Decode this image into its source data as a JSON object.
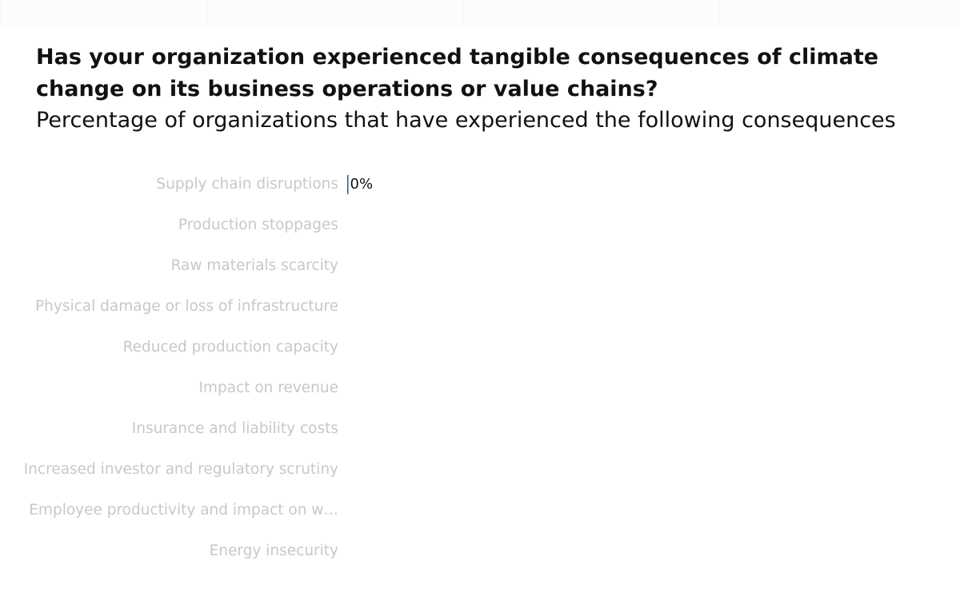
{
  "chart_data": {
    "type": "bar",
    "orientation": "horizontal",
    "title": "Has your organization experienced tangible consequences of climate change on its business operations or value chains?",
    "subtitle": "Percentage of organizations that have experienced the following consequences",
    "categories": [
      "Supply chain disruptions",
      "Production stoppages",
      "Raw materials scarcity",
      "Physical damage or loss of infrastructure",
      "Reduced production capacity",
      "Impact on revenue",
      "Insurance and liability costs",
      "Increased investor and regulatory scrutiny",
      "Employee productivity and impact on w…",
      "Energy insecurity"
    ],
    "values": [
      0,
      null,
      null,
      null,
      null,
      null,
      null,
      null,
      null,
      null
    ],
    "value_labels": [
      "0%",
      "",
      "",
      "",
      "",
      "",
      "",
      "",
      "",
      ""
    ],
    "bar_color": "#2b5f8a",
    "label_color": "#c8c8c8"
  }
}
